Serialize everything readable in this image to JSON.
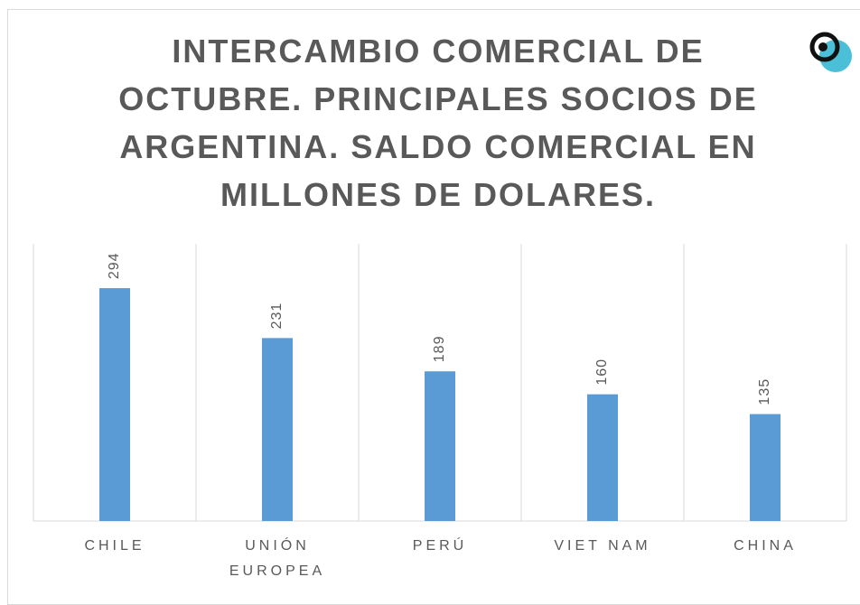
{
  "chart_data": {
    "type": "bar",
    "title": "INTERCAMBIO COMERCIAL DE OCTUBRE. PRINCIPALES SOCIOS DE ARGENTINA. SALDO COMERCIAL EN MILLONES DE DOLARES.",
    "categories": [
      "CHILE",
      "UNIÓN EUROPEA",
      "PERÚ",
      "VIET NAM",
      "CHINA"
    ],
    "values": [
      294,
      231,
      189,
      160,
      135
    ],
    "color": "#5b9bd5",
    "ylim": [
      0,
      350
    ]
  }
}
